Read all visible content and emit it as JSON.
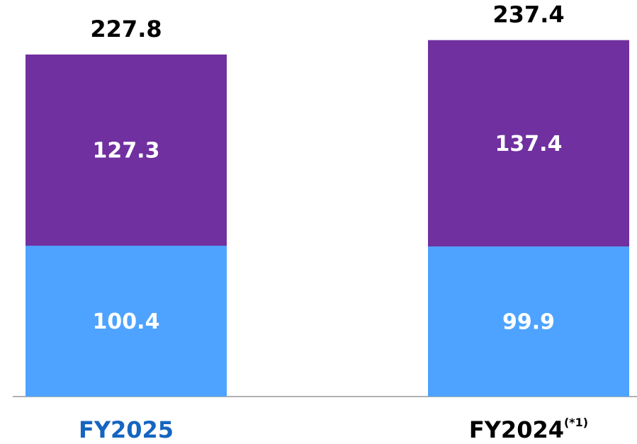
{
  "chart_data": {
    "type": "stacked_bar",
    "categories": [
      "FY2025",
      "FY2024"
    ],
    "category_notes": [
      null,
      "(*1)"
    ],
    "category_label_colors": [
      "#1565c0",
      "#000000"
    ],
    "series": [
      {
        "color": "#4da3ff",
        "values": [
          100.4,
          99.9
        ]
      },
      {
        "color": "#7030a0",
        "values": [
          127.3,
          137.4
        ]
      }
    ],
    "totals": [
      227.8,
      237.4
    ],
    "ylim": [
      0,
      264
    ]
  }
}
